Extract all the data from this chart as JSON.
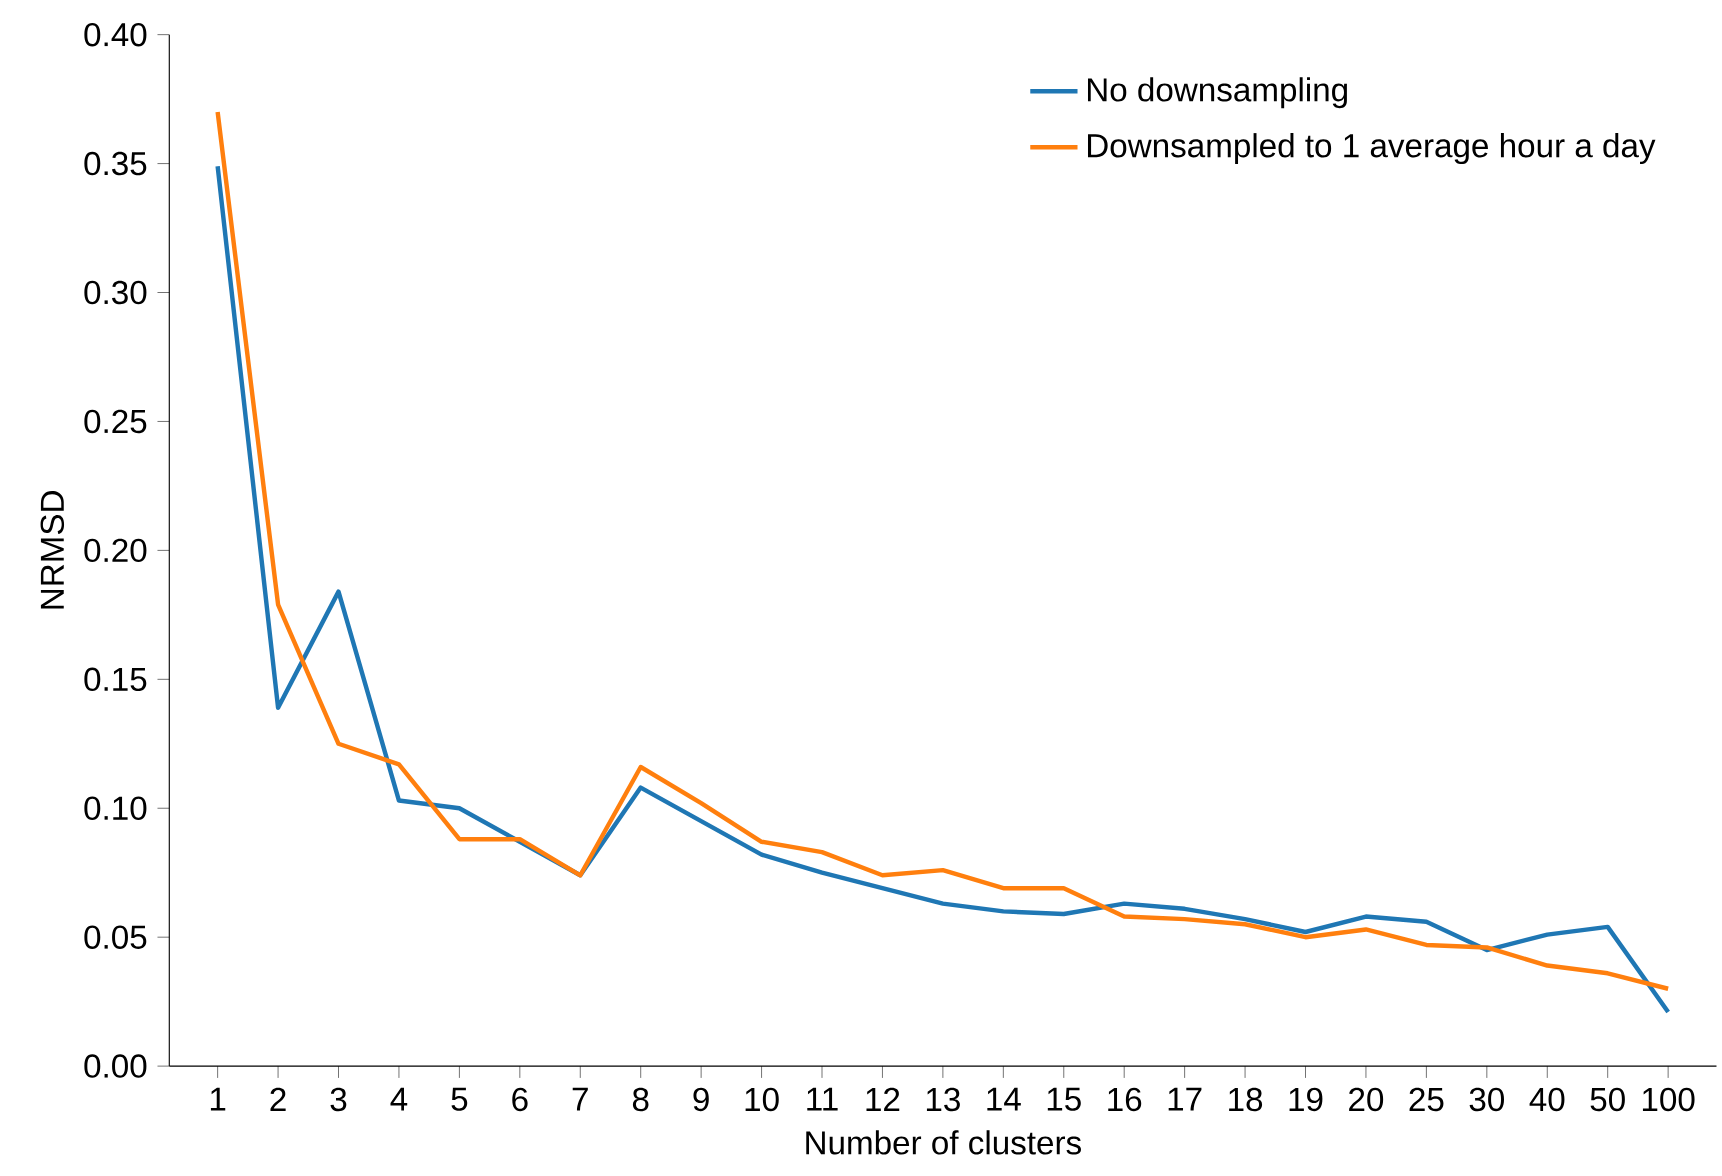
{
  "chart_data": {
    "type": "line",
    "xlabel": "Number of clusters",
    "ylabel": "NRMSD",
    "categories": [
      "1",
      "2",
      "3",
      "4",
      "5",
      "6",
      "7",
      "8",
      "9",
      "10",
      "11",
      "12",
      "13",
      "14",
      "15",
      "16",
      "17",
      "18",
      "19",
      "20",
      "25",
      "30",
      "40",
      "50",
      "100"
    ],
    "series": [
      {
        "name": "No downsampling",
        "color": "#1f77b4",
        "values": [
          0.349,
          0.139,
          0.184,
          0.103,
          0.1,
          0.087,
          0.074,
          0.108,
          0.095,
          0.082,
          0.075,
          0.069,
          0.063,
          0.06,
          0.059,
          0.063,
          0.061,
          0.057,
          0.052,
          0.058,
          0.056,
          0.045,
          0.051,
          0.054,
          0.021
        ]
      },
      {
        "name": "Downsampled to 1 average hour a day",
        "color": "#ff7f0e",
        "values": [
          0.37,
          0.179,
          0.125,
          0.117,
          0.088,
          0.088,
          0.074,
          0.116,
          0.102,
          0.087,
          0.083,
          0.074,
          0.076,
          0.069,
          0.069,
          0.058,
          0.057,
          0.055,
          0.05,
          0.053,
          0.047,
          0.046,
          0.039,
          0.036,
          0.03
        ]
      }
    ],
    "ylim": [
      0,
      0.4
    ],
    "yticks": [
      {
        "value": 0,
        "label": "0.00"
      },
      {
        "value": 0.05,
        "label": "0.05"
      },
      {
        "value": 0.1,
        "label": "0.10"
      },
      {
        "value": 0.15,
        "label": "0.15"
      },
      {
        "value": 0.2,
        "label": "0.20"
      },
      {
        "value": 0.25,
        "label": "0.25"
      },
      {
        "value": 0.3,
        "label": "0.30"
      },
      {
        "value": 0.35,
        "label": "0.35"
      },
      {
        "value": 0.4,
        "label": "0.40"
      }
    ],
    "legend": "top right",
    "grid": false
  }
}
